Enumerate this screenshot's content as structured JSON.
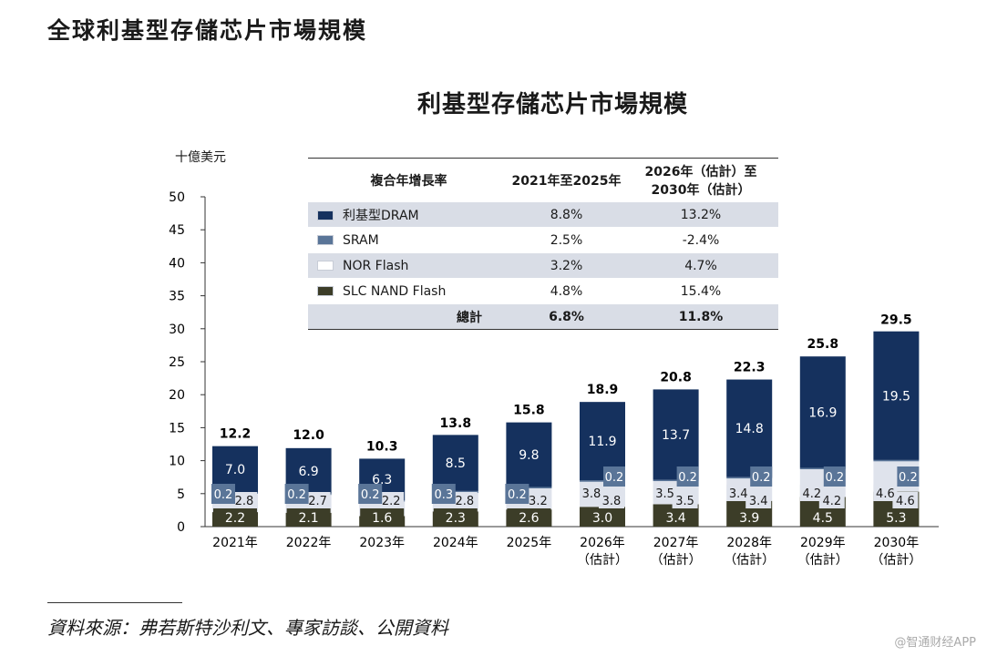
{
  "page_heading": "全球利基型存儲芯片市場規模",
  "source_note": "資料來源：弗若斯特沙利文、專家訪談、公開資料",
  "watermark": "@智通财经APP",
  "colors": {
    "dram": "#15315e",
    "sram": "#5a7598",
    "nor": "#dfe3ec",
    "nand": "#3c3d28",
    "table_shade": "#d9dde6"
  },
  "cagr_table": {
    "header": {
      "col1": "複合年增長率",
      "col2": "2021年至2025年",
      "col3_line1": "2026年（估計）至",
      "col3_line2": "2030年（估計）"
    },
    "rows": [
      {
        "label": "利基型DRAM",
        "swatch": "dram",
        "c2021_2025": "8.8%",
        "c2026_2030": "13.2%"
      },
      {
        "label": "SRAM",
        "swatch": "sram",
        "c2021_2025": "2.5%",
        "c2026_2030": "-2.4%"
      },
      {
        "label": "NOR Flash",
        "swatch": "nor",
        "c2021_2025": "3.2%",
        "c2026_2030": "4.7%"
      },
      {
        "label": "SLC NAND Flash",
        "swatch": "nand",
        "c2021_2025": "4.8%",
        "c2026_2030": "15.4%"
      }
    ],
    "total": {
      "label": "總計",
      "c2021_2025": "6.8%",
      "c2026_2030": "11.8%"
    }
  },
  "chart_data": {
    "type": "bar",
    "stacked": true,
    "title": "利基型存儲芯片市場規模",
    "ylabel": "十億美元",
    "ylim": [
      0,
      50
    ],
    "yticks": [
      0,
      5,
      10,
      15,
      20,
      25,
      30,
      35,
      40,
      45,
      50
    ],
    "grid": false,
    "categories": [
      [
        "2021年"
      ],
      [
        "2022年"
      ],
      [
        "2023年"
      ],
      [
        "2024年"
      ],
      [
        "2025年"
      ],
      [
        "2026年",
        "（估計）"
      ],
      [
        "2027年",
        "（估計）"
      ],
      [
        "2028年",
        "（估計）"
      ],
      [
        "2029年",
        "（估計）"
      ],
      [
        "2030年",
        "（估計）"
      ]
    ],
    "series": [
      {
        "key": "nand",
        "values": [
          2.2,
          2.1,
          1.6,
          2.3,
          2.6,
          3.0,
          3.4,
          3.9,
          4.5,
          5.3
        ]
      },
      {
        "key": "nor",
        "values": [
          2.8,
          2.7,
          2.2,
          2.8,
          3.2,
          3.8,
          3.5,
          3.4,
          4.2,
          4.6
        ]
      },
      {
        "key": "sram",
        "values": [
          0.2,
          0.2,
          0.2,
          0.3,
          0.2,
          0.2,
          0.2,
          0.2,
          0.2,
          0.2
        ]
      },
      {
        "key": "dram",
        "values": [
          7.0,
          6.9,
          6.3,
          8.5,
          9.8,
          11.9,
          13.7,
          14.8,
          16.9,
          19.5
        ]
      }
    ],
    "totals": [
      12.2,
      12.0,
      10.3,
      13.8,
      15.8,
      18.9,
      20.8,
      22.3,
      25.8,
      29.5
    ]
  }
}
